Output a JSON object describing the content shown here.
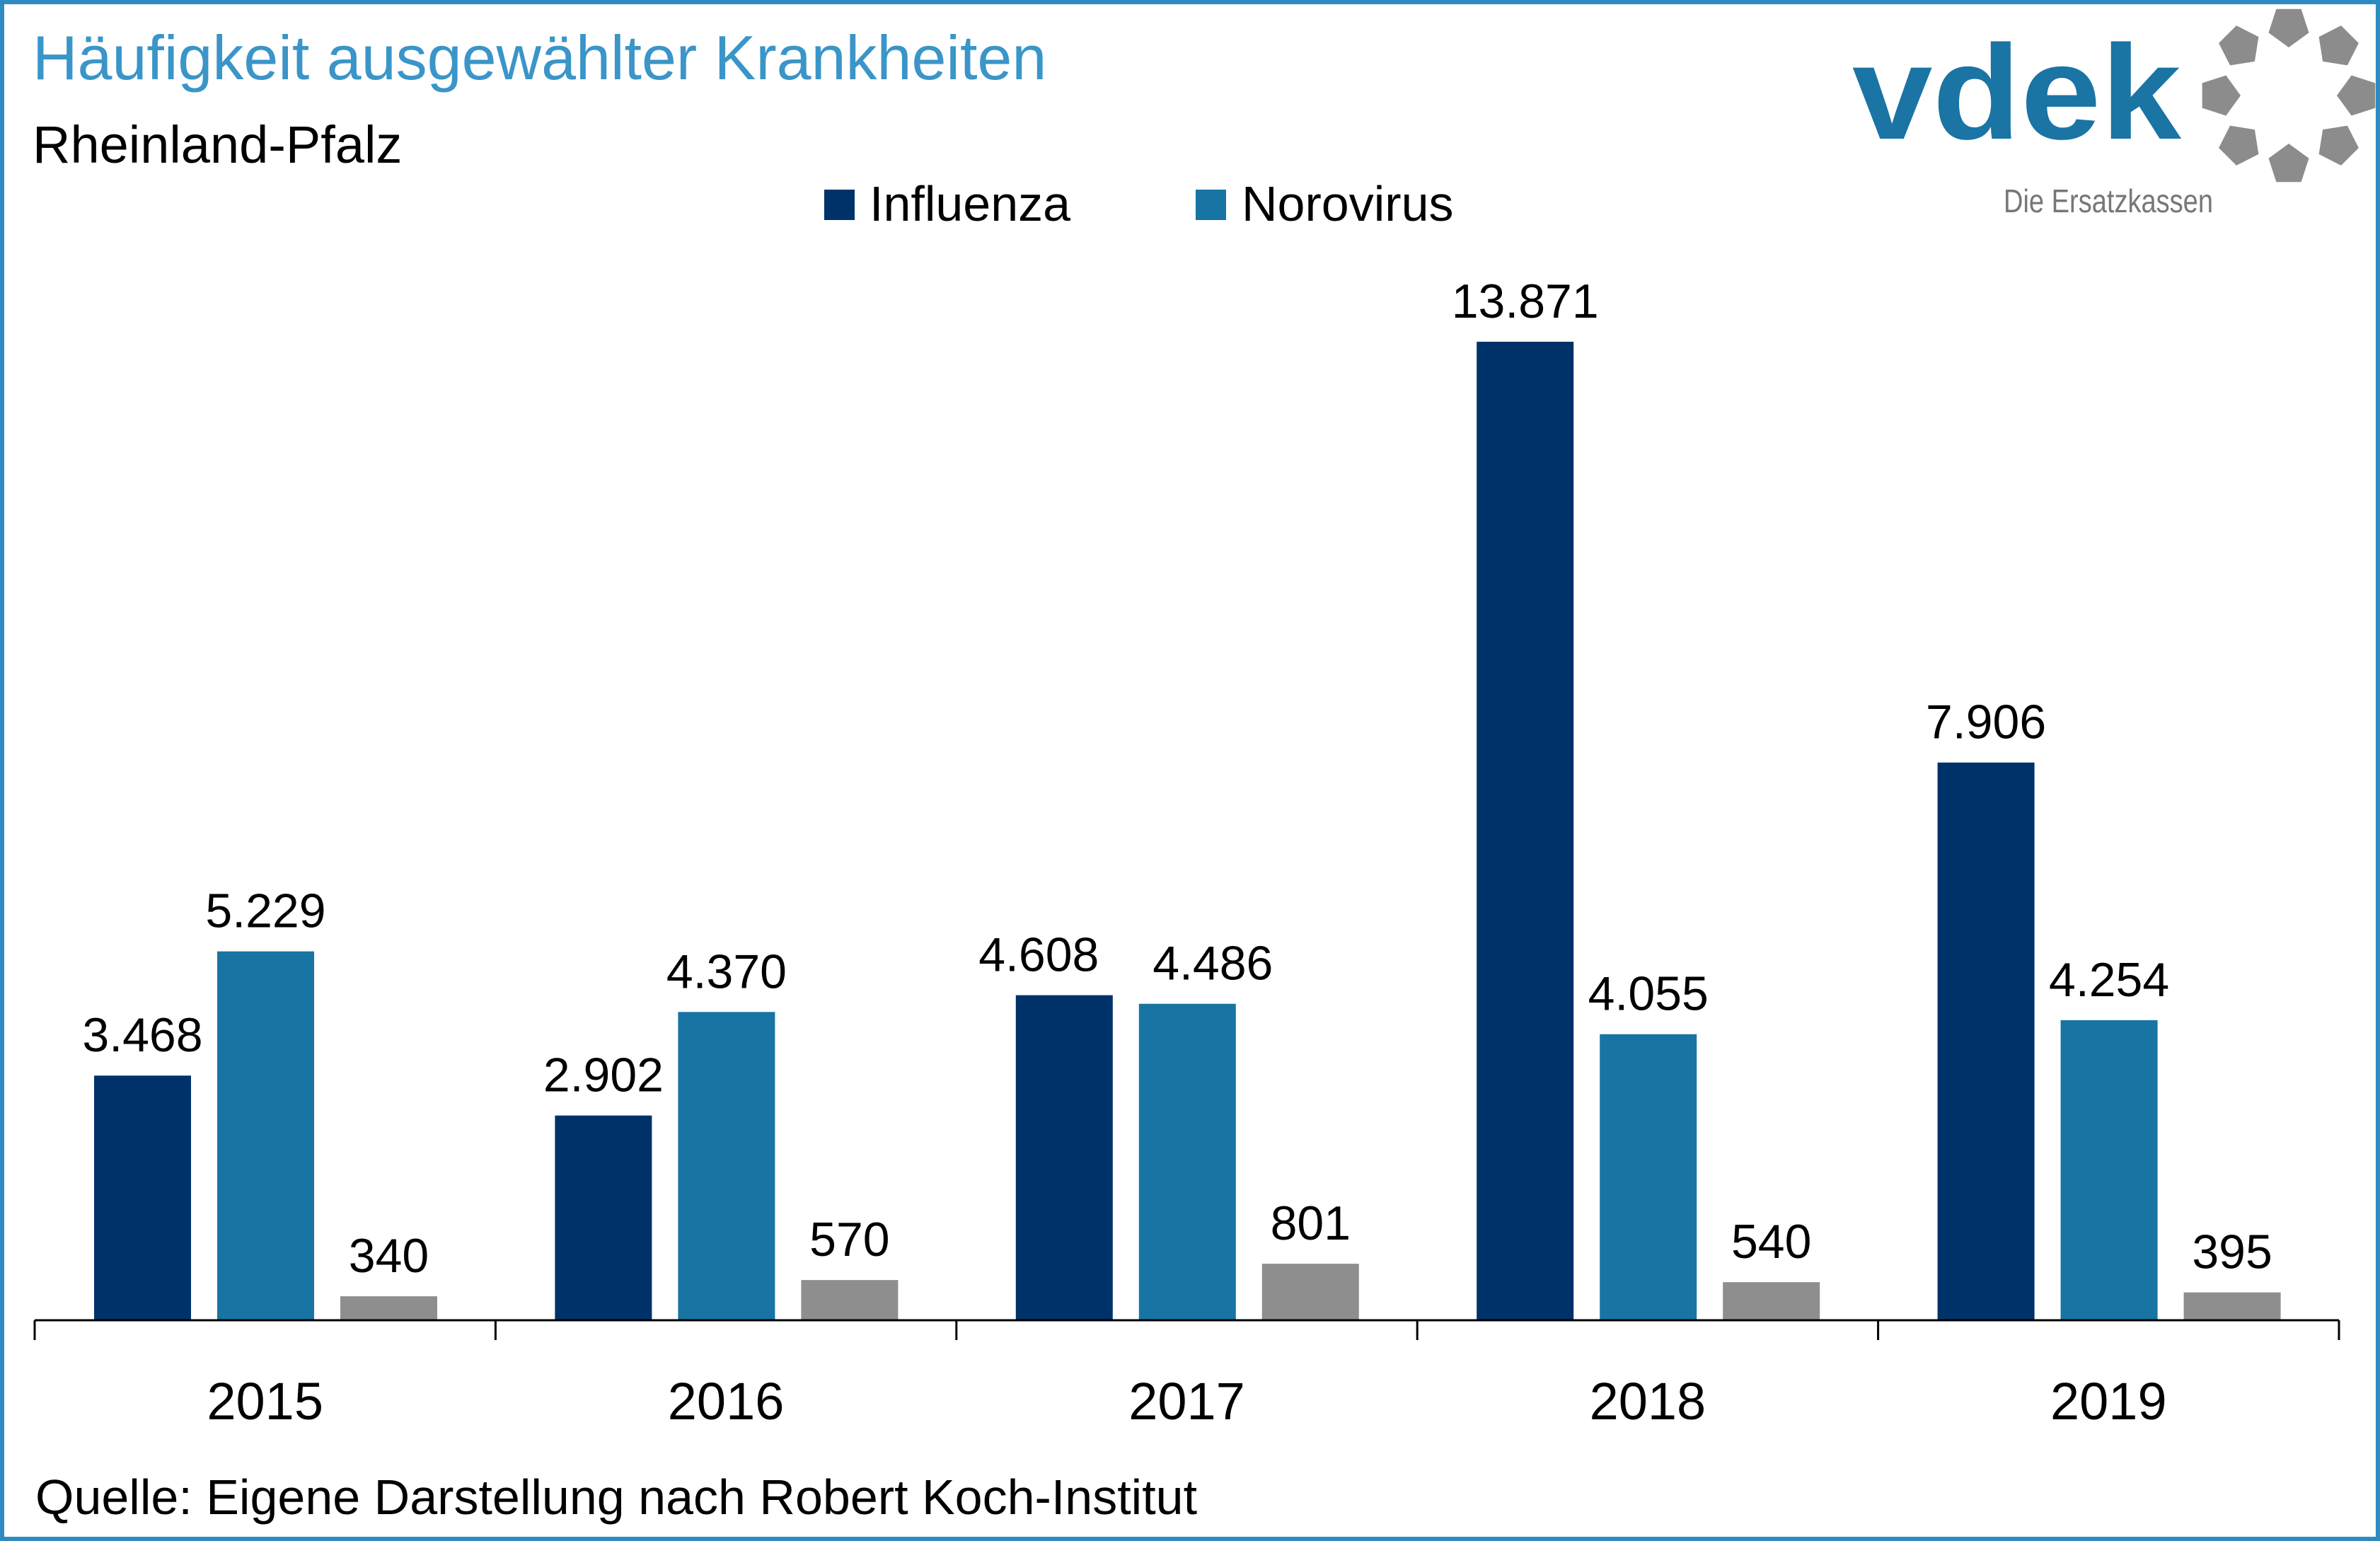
{
  "chart_data": {
    "type": "bar",
    "title": "Häufigkeit ausgewählter Krankheiten",
    "subtitle": "Rheinland-Pfalz",
    "categories": [
      "2015",
      "2016",
      "2017",
      "2018",
      "2019"
    ],
    "series": [
      {
        "name": "Influenza",
        "color": "#00326a",
        "values": [
          3468,
          2902,
          4608,
          13871,
          7906
        ],
        "labels": [
          "3.468",
          "2.902",
          "4.608",
          "13.871",
          "7.906"
        ]
      },
      {
        "name": "Norovirus",
        "color": "#1874a3",
        "values": [
          5229,
          4370,
          4486,
          4055,
          4254
        ],
        "labels": [
          "5.229",
          "4.370",
          "4.486",
          "4.055",
          "4.254"
        ]
      },
      {
        "name": "",
        "color": "#8e8e8e",
        "values": [
          340,
          570,
          801,
          540,
          395
        ],
        "labels": [
          "340",
          "570",
          "801",
          "540",
          "395"
        ]
      }
    ],
    "legend": [
      "Influenza",
      "Norovirus"
    ],
    "legend_position": "top-center",
    "ylim": [
      0,
      14500
    ],
    "grid": false,
    "source": "Quelle: Eigene Darstellung nach Robert Koch-Institut"
  },
  "logo": {
    "name": "vdek",
    "tagline": "Die Ersatzkassen",
    "color": "#1a74a4",
    "ring_color": "#8c8c8c"
  },
  "colors": {
    "title": "#3a95c8",
    "border": "#2e8bc0"
  }
}
